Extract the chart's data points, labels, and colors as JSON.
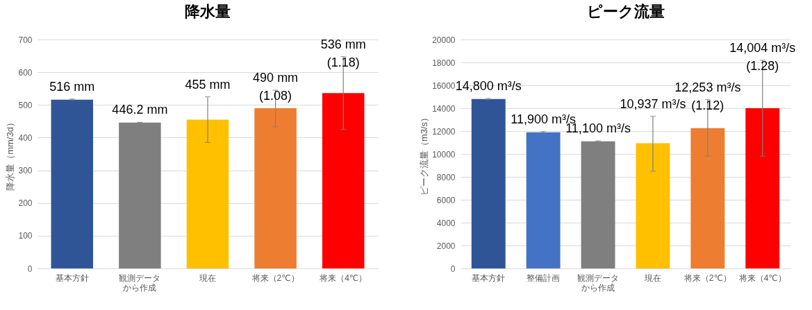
{
  "chart_data": [
    {
      "type": "bar",
      "title": "降水量",
      "ylabel": "降水量（mm/3d）",
      "categories": [
        "基本方針",
        "観測データから作成",
        "現在",
        "将来（2℃）",
        "将来（4℃）"
      ],
      "values": [
        516,
        446.2,
        455,
        490,
        536
      ],
      "colors": [
        "#2f5597",
        "#7f7f7f",
        "#ffc000",
        "#ed7d31",
        "#ff0000"
      ],
      "errors": [
        [
          515,
          518
        ],
        [
          445.5,
          447
        ],
        [
          385,
          525
        ],
        [
          433,
          545
        ],
        [
          425,
          648
        ]
      ],
      "value_labels": [
        "516 mm",
        "446.2 mm",
        "455 mm",
        "490 mm\n(1.08)",
        "536 mm\n(1.18)"
      ],
      "ylim": [
        0,
        700
      ],
      "yticks": [
        0,
        100,
        200,
        300,
        400,
        500,
        600,
        700
      ],
      "grid": "y"
    },
    {
      "type": "bar",
      "title": "ピーク流量",
      "ylabel": "ピーク流量（m3/s）",
      "categories": [
        "基本方針",
        "整備計画",
        "観測データから作成",
        "現在",
        "将来（2℃）",
        "将来（4℃）"
      ],
      "values": [
        14800,
        11900,
        11100,
        10937,
        12253,
        14004
      ],
      "colors": [
        "#2f5597",
        "#4472c4",
        "#7f7f7f",
        "#ffc000",
        "#ed7d31",
        "#ff0000"
      ],
      "errors": [
        [
          14750,
          14850
        ],
        [
          11850,
          11950
        ],
        [
          11050,
          11150
        ],
        [
          8500,
          13300
        ],
        [
          9800,
          14750
        ],
        [
          9800,
          18200
        ]
      ],
      "value_labels": [
        "14,800 m³/s",
        "11,900 m³/s",
        "11,100 m³/s",
        "10,937 m³/s",
        "12,253 m³/s\n(1.12)",
        "14,004 m³/s\n(1.28)"
      ],
      "ylim": [
        0,
        20000
      ],
      "yticks": [
        0,
        2000,
        4000,
        6000,
        8000,
        10000,
        12000,
        14000,
        16000,
        18000,
        20000
      ],
      "grid": "y"
    }
  ]
}
